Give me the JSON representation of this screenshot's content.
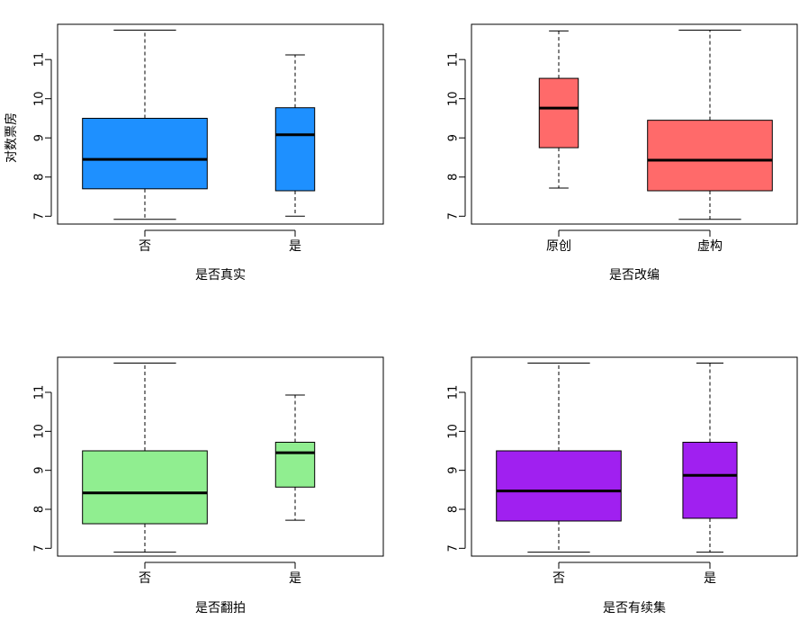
{
  "chart_data": [
    {
      "type": "boxplot",
      "xlabel": "是否真实",
      "ylabel": "对数票房",
      "ylim": [
        6.8,
        11.9
      ],
      "yticks": [
        7,
        8,
        9,
        10,
        11
      ],
      "categories": [
        "否",
        "是"
      ],
      "color": "#1E90FF",
      "boxes": [
        {
          "min": 6.92,
          "q1": 7.7,
          "median": 8.45,
          "q3": 9.5,
          "max": 11.75
        },
        {
          "min": 7.0,
          "q1": 7.65,
          "median": 9.08,
          "q3": 9.77,
          "max": 11.12
        }
      ],
      "widths": [
        0.83,
        0.26
      ]
    },
    {
      "type": "boxplot",
      "xlabel": "是否改编",
      "ylabel": "",
      "ylim": [
        6.8,
        11.9
      ],
      "yticks": [
        7,
        8,
        9,
        10,
        11
      ],
      "categories": [
        "原创",
        "虚构"
      ],
      "color": "#FF6A6A",
      "boxes": [
        {
          "min": 7.72,
          "q1": 8.75,
          "median": 9.76,
          "q3": 10.52,
          "max": 11.73
        },
        {
          "min": 6.92,
          "q1": 7.65,
          "median": 8.43,
          "q3": 9.45,
          "max": 11.75
        }
      ],
      "widths": [
        0.26,
        0.83
      ]
    },
    {
      "type": "boxplot",
      "xlabel": "是否翻拍",
      "ylabel": "",
      "ylim": [
        6.8,
        11.9
      ],
      "yticks": [
        7,
        8,
        9,
        10,
        11
      ],
      "categories": [
        "否",
        "是"
      ],
      "color": "#90EE90",
      "boxes": [
        {
          "min": 6.9,
          "q1": 7.63,
          "median": 8.42,
          "q3": 9.5,
          "max": 11.75
        },
        {
          "min": 7.72,
          "q1": 8.57,
          "median": 9.45,
          "q3": 9.72,
          "max": 10.93
        }
      ],
      "widths": [
        0.83,
        0.26
      ]
    },
    {
      "type": "boxplot",
      "xlabel": "是否有续集",
      "ylabel": "",
      "ylim": [
        6.8,
        11.9
      ],
      "yticks": [
        7,
        8,
        9,
        10,
        11
      ],
      "categories": [
        "否",
        "是"
      ],
      "color": "#A020F0",
      "boxes": [
        {
          "min": 6.9,
          "q1": 7.7,
          "median": 8.47,
          "q3": 9.5,
          "max": 11.75
        },
        {
          "min": 6.9,
          "q1": 7.77,
          "median": 8.87,
          "q3": 9.72,
          "max": 11.75
        }
      ],
      "widths": [
        0.83,
        0.36
      ]
    }
  ]
}
